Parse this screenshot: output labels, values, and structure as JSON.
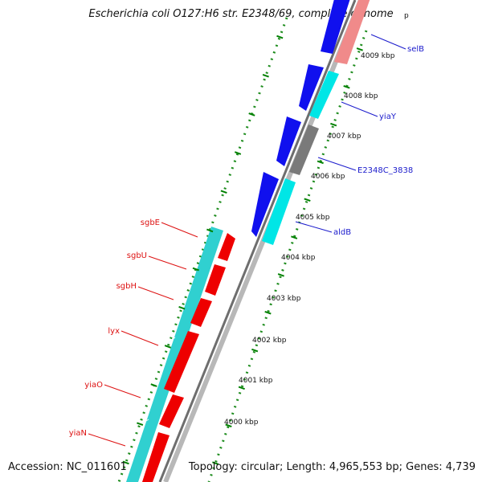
{
  "title": "Escherichia coli O127:H6 str. E2348/69, complete genome",
  "accession": "Accession: NC_011601",
  "topology": "Topology: circular; Length: 4,965,553 bp; Genes: 4,739",
  "colors": {
    "backbone": "#8c8c8c",
    "tick": "#008000",
    "gene_label_forward": "#1a1acc",
    "gene_label_reverse": "#dd1111",
    "forward_cds": "#1010ee",
    "forward_rna": "#00e6e6",
    "pseudo": "#707070",
    "rna_reverse": "#30d0d0",
    "reverse_cds": "#ee0000",
    "faint_cds": "#f08080"
  },
  "scale_labels": [
    "4000 kbp",
    "4001 kbp",
    "4002 kbp",
    "4003 kbp",
    "4004 kbp",
    "4005 kbp",
    "4006 kbp",
    "4007 kbp",
    "4008 kbp",
    "4009 kbp",
    "p"
  ],
  "genes_forward": [
    {
      "name": "selB"
    },
    {
      "name": "yiaY"
    },
    {
      "name": "E2348C_3838"
    },
    {
      "name": "aldB"
    }
  ],
  "genes_reverse": [
    {
      "name": "sgbE"
    },
    {
      "name": "sgbU"
    },
    {
      "name": "sgbH"
    },
    {
      "name": "lyx"
    },
    {
      "name": "yiaO"
    },
    {
      "name": "yiaN"
    }
  ]
}
